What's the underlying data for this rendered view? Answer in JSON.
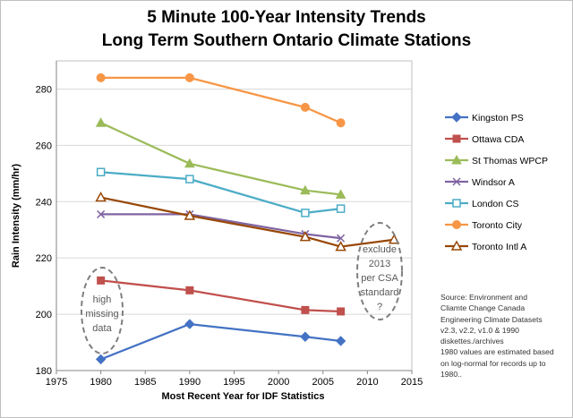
{
  "chart_data": {
    "type": "line",
    "title": [
      "5 Minute 100-Year Intensity Trends",
      "Long Term Southern Ontario Climate Stations"
    ],
    "xlabel": "Most Recent Year for IDF Statistics",
    "ylabel": "Rain Intensity (mm/hr)",
    "xlim": [
      1975,
      2015
    ],
    "ylim": [
      180,
      290
    ],
    "xticks": [
      1975,
      1980,
      1985,
      1990,
      1995,
      2000,
      2005,
      2010,
      2015
    ],
    "yticks": [
      180,
      200,
      220,
      240,
      260,
      280
    ],
    "grid": "horizontal",
    "legend_position": "right",
    "series": [
      {
        "name": "Kingston PS",
        "color": "#4472c4",
        "marker": "diamond",
        "x": [
          1980,
          1990,
          2003,
          2007
        ],
        "y": [
          184,
          196.5,
          192,
          190.5
        ]
      },
      {
        "name": "Ottawa CDA",
        "color": "#c0504d",
        "marker": "square",
        "x": [
          1980,
          1990,
          2003,
          2007
        ],
        "y": [
          212,
          208.5,
          201.5,
          201
        ]
      },
      {
        "name": "St Thomas WPCP",
        "color": "#9bbb59",
        "marker": "triangle",
        "x": [
          1980,
          1990,
          2003,
          2007
        ],
        "y": [
          268,
          253.5,
          244,
          242.5
        ]
      },
      {
        "name": "Windsor A",
        "color": "#8064a2",
        "marker": "x",
        "x": [
          1980,
          1990,
          2003,
          2007
        ],
        "y": [
          235.5,
          235.5,
          228.5,
          227
        ]
      },
      {
        "name": "London CS",
        "color": "#4bacc6",
        "marker": "open-square",
        "x": [
          1980,
          1990,
          2003,
          2007
        ],
        "y": [
          250.5,
          248,
          236,
          237.5
        ]
      },
      {
        "name": "Toronto City",
        "color": "#f79646",
        "marker": "circle",
        "x": [
          1980,
          1990,
          2003,
          2007
        ],
        "y": [
          284,
          284,
          273.5,
          268
        ]
      },
      {
        "name": "Toronto Intl A",
        "color": "#984807",
        "marker": "open-triangle",
        "x": [
          1980,
          1990,
          2003,
          2007,
          2013
        ],
        "y": [
          241.5,
          235,
          227.5,
          224,
          226.5
        ]
      }
    ],
    "annotations": [
      {
        "lines": [
          "high",
          "missing",
          "data"
        ]
      },
      {
        "lines": [
          "exclude",
          "2013",
          "per CSA",
          "standard",
          "?"
        ]
      }
    ]
  },
  "source_note": [
    "Source: Environment and",
    "Cliamte Change Canada",
    "Engineering Climate Datasets",
    "v2.3, v2.2, v1.0 & 1990",
    "diskettes./archives",
    "1980 values are estimated based",
    "on log-normal for records up to",
    "1980.."
  ]
}
